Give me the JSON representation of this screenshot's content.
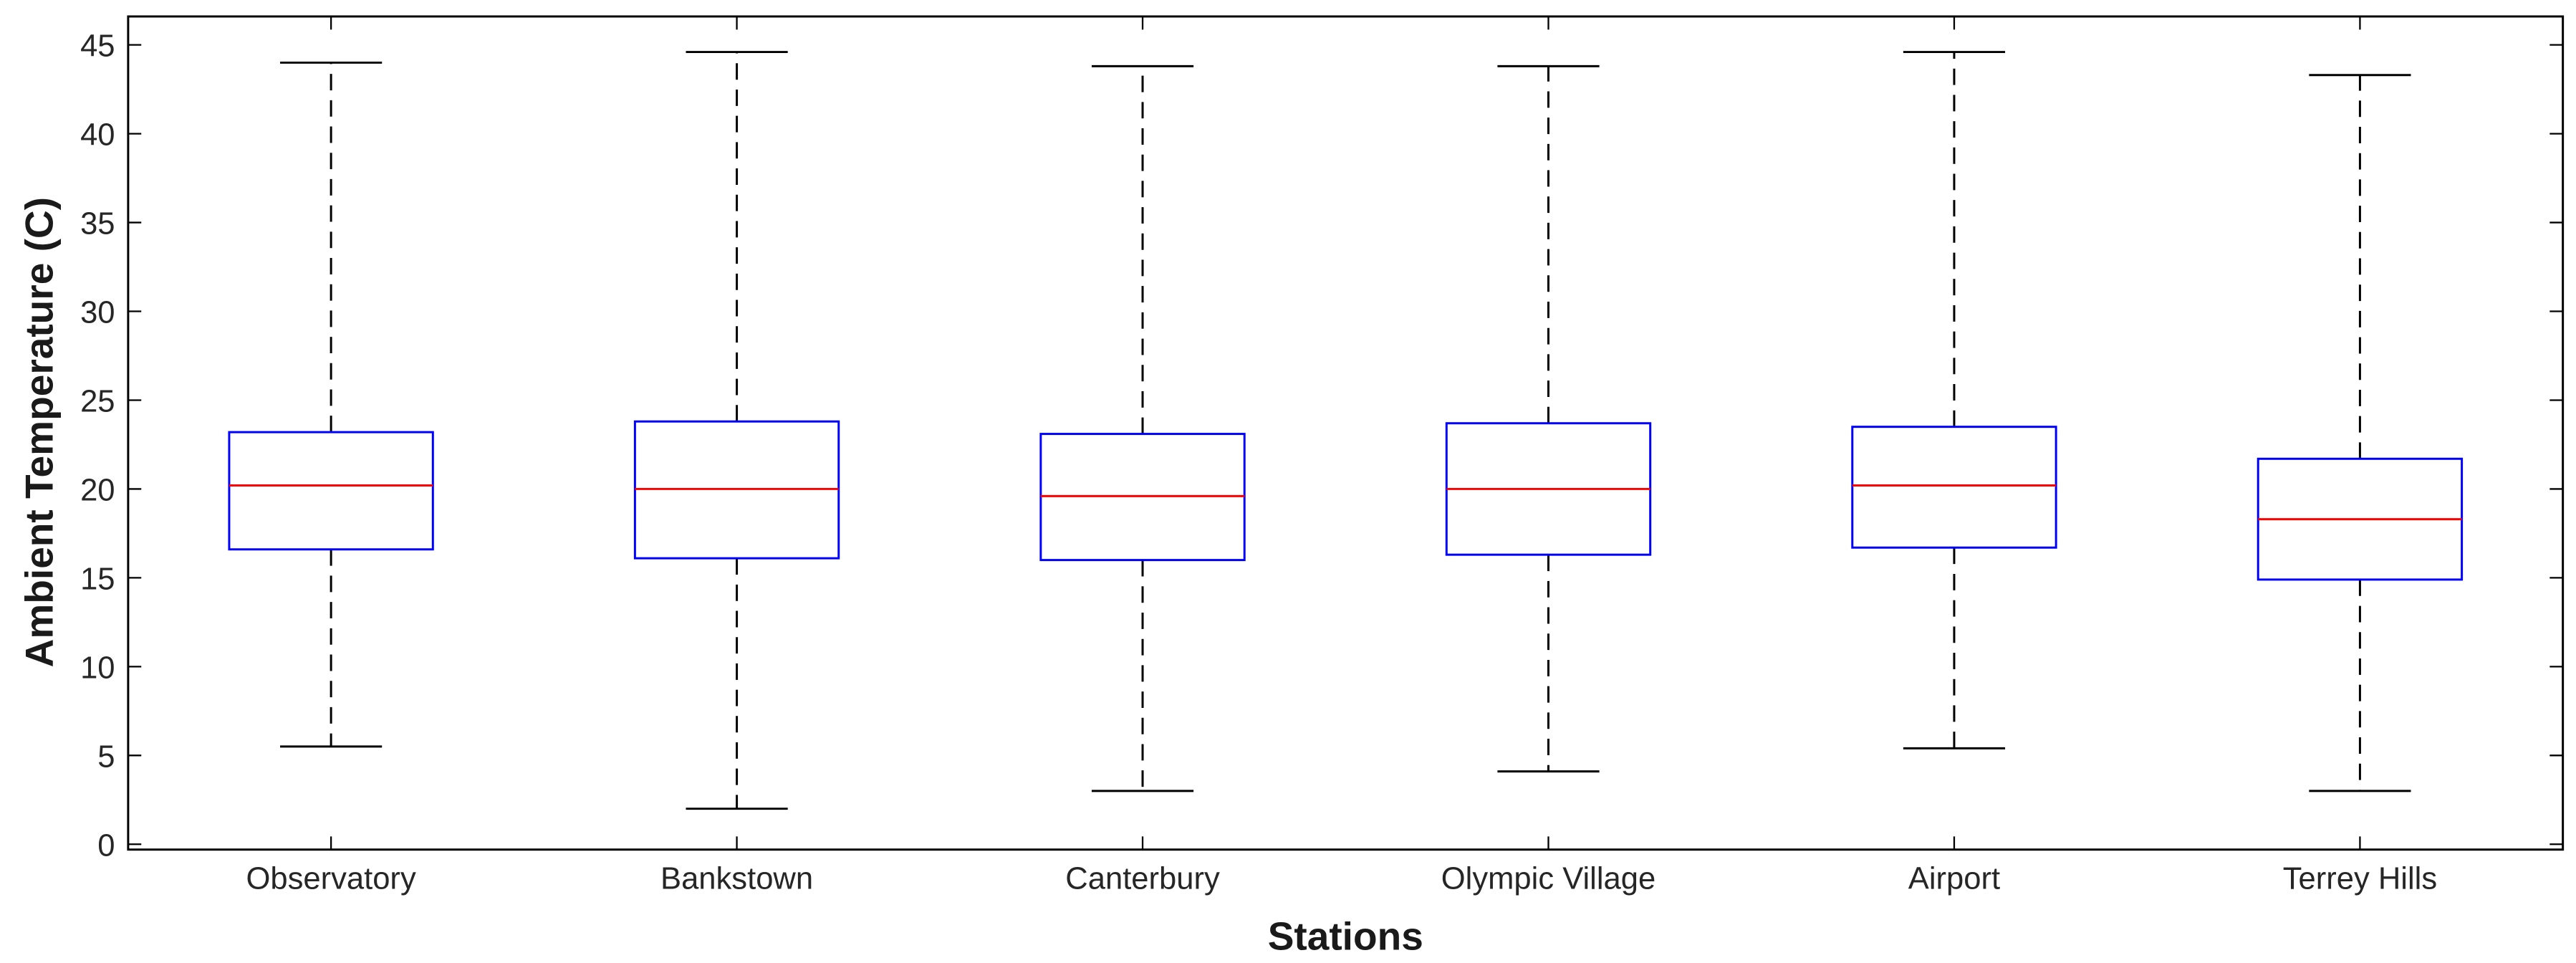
{
  "chart_data": {
    "type": "box",
    "x_label": "Stations",
    "y_label": "Ambient Temperature (C)",
    "categories": [
      "Observatory",
      "Bankstown",
      "Canterbury",
      "Olympic Village",
      "Airport",
      "Terrey Hills"
    ],
    "boxes": [
      {
        "min": 5.5,
        "q1": 16.6,
        "median": 20.2,
        "q3": 23.2,
        "max": 44.0
      },
      {
        "min": 2.0,
        "q1": 16.1,
        "median": 20.0,
        "q3": 23.8,
        "max": 44.6
      },
      {
        "min": 3.0,
        "q1": 16.0,
        "median": 19.6,
        "q3": 23.1,
        "max": 43.8
      },
      {
        "min": 4.1,
        "q1": 16.3,
        "median": 20.0,
        "q3": 23.7,
        "max": 43.8
      },
      {
        "min": 5.4,
        "q1": 16.7,
        "median": 20.2,
        "q3": 23.5,
        "max": 44.6
      },
      {
        "min": 3.0,
        "q1": 14.9,
        "median": 18.3,
        "q3": 21.7,
        "max": 43.3
      }
    ],
    "box_color": "#0000ff",
    "median_color": "#ff0000",
    "whisker_color": "#000000",
    "ylim": [
      -0.3,
      46.6
    ],
    "yticks": [
      0,
      5,
      10,
      15,
      20,
      25,
      30,
      35,
      40,
      45
    ]
  }
}
